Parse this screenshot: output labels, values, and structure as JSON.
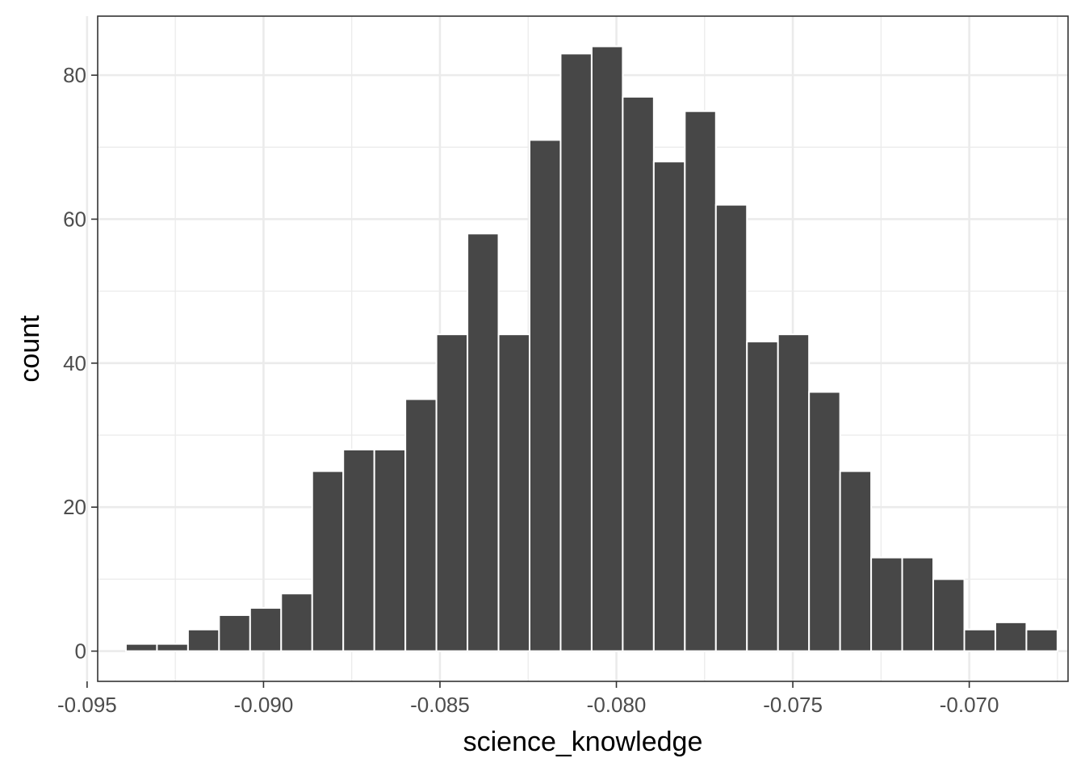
{
  "chart_data": {
    "type": "bar",
    "subtype": "histogram",
    "title": "",
    "xlabel": "science_knowledge",
    "ylabel": "count",
    "xlim": [
      -0.0947,
      -0.0672
    ],
    "ylim": [
      -4.2,
      88.2
    ],
    "x_ticks": [
      -0.095,
      -0.09,
      -0.085,
      -0.08,
      -0.075,
      -0.07
    ],
    "x_tick_labels": [
      "-0.095",
      "-0.090",
      "-0.085",
      "-0.080",
      "-0.075",
      "-0.070"
    ],
    "y_ticks": [
      0,
      20,
      40,
      60,
      80
    ],
    "y_tick_labels": [
      "0",
      "20",
      "40",
      "60",
      "80"
    ],
    "bin_width": 0.00088,
    "bin_centers": [
      -0.09346,
      -0.09258,
      -0.0917,
      -0.09082,
      -0.08994,
      -0.08906,
      -0.08818,
      -0.0873,
      -0.08642,
      -0.08554,
      -0.08466,
      -0.08378,
      -0.0829,
      -0.08202,
      -0.08114,
      -0.08026,
      -0.07938,
      -0.0785,
      -0.07762,
      -0.07674,
      -0.07586,
      -0.07498,
      -0.0741,
      -0.07322,
      -0.07234,
      -0.07146,
      -0.07058,
      -0.0697,
      -0.06882,
      -0.06794
    ],
    "values": [
      1,
      1,
      3,
      5,
      6,
      8,
      25,
      28,
      28,
      35,
      44,
      58,
      44,
      71,
      83,
      84,
      77,
      68,
      75,
      62,
      43,
      44,
      36,
      25,
      13,
      13,
      10,
      3,
      4,
      3
    ],
    "bar_color": "#474747",
    "bar_outline": "#ffffff",
    "grid": true,
    "grid_color": "#ebebeb",
    "panel_border_color": "#333333",
    "legend": "none"
  }
}
